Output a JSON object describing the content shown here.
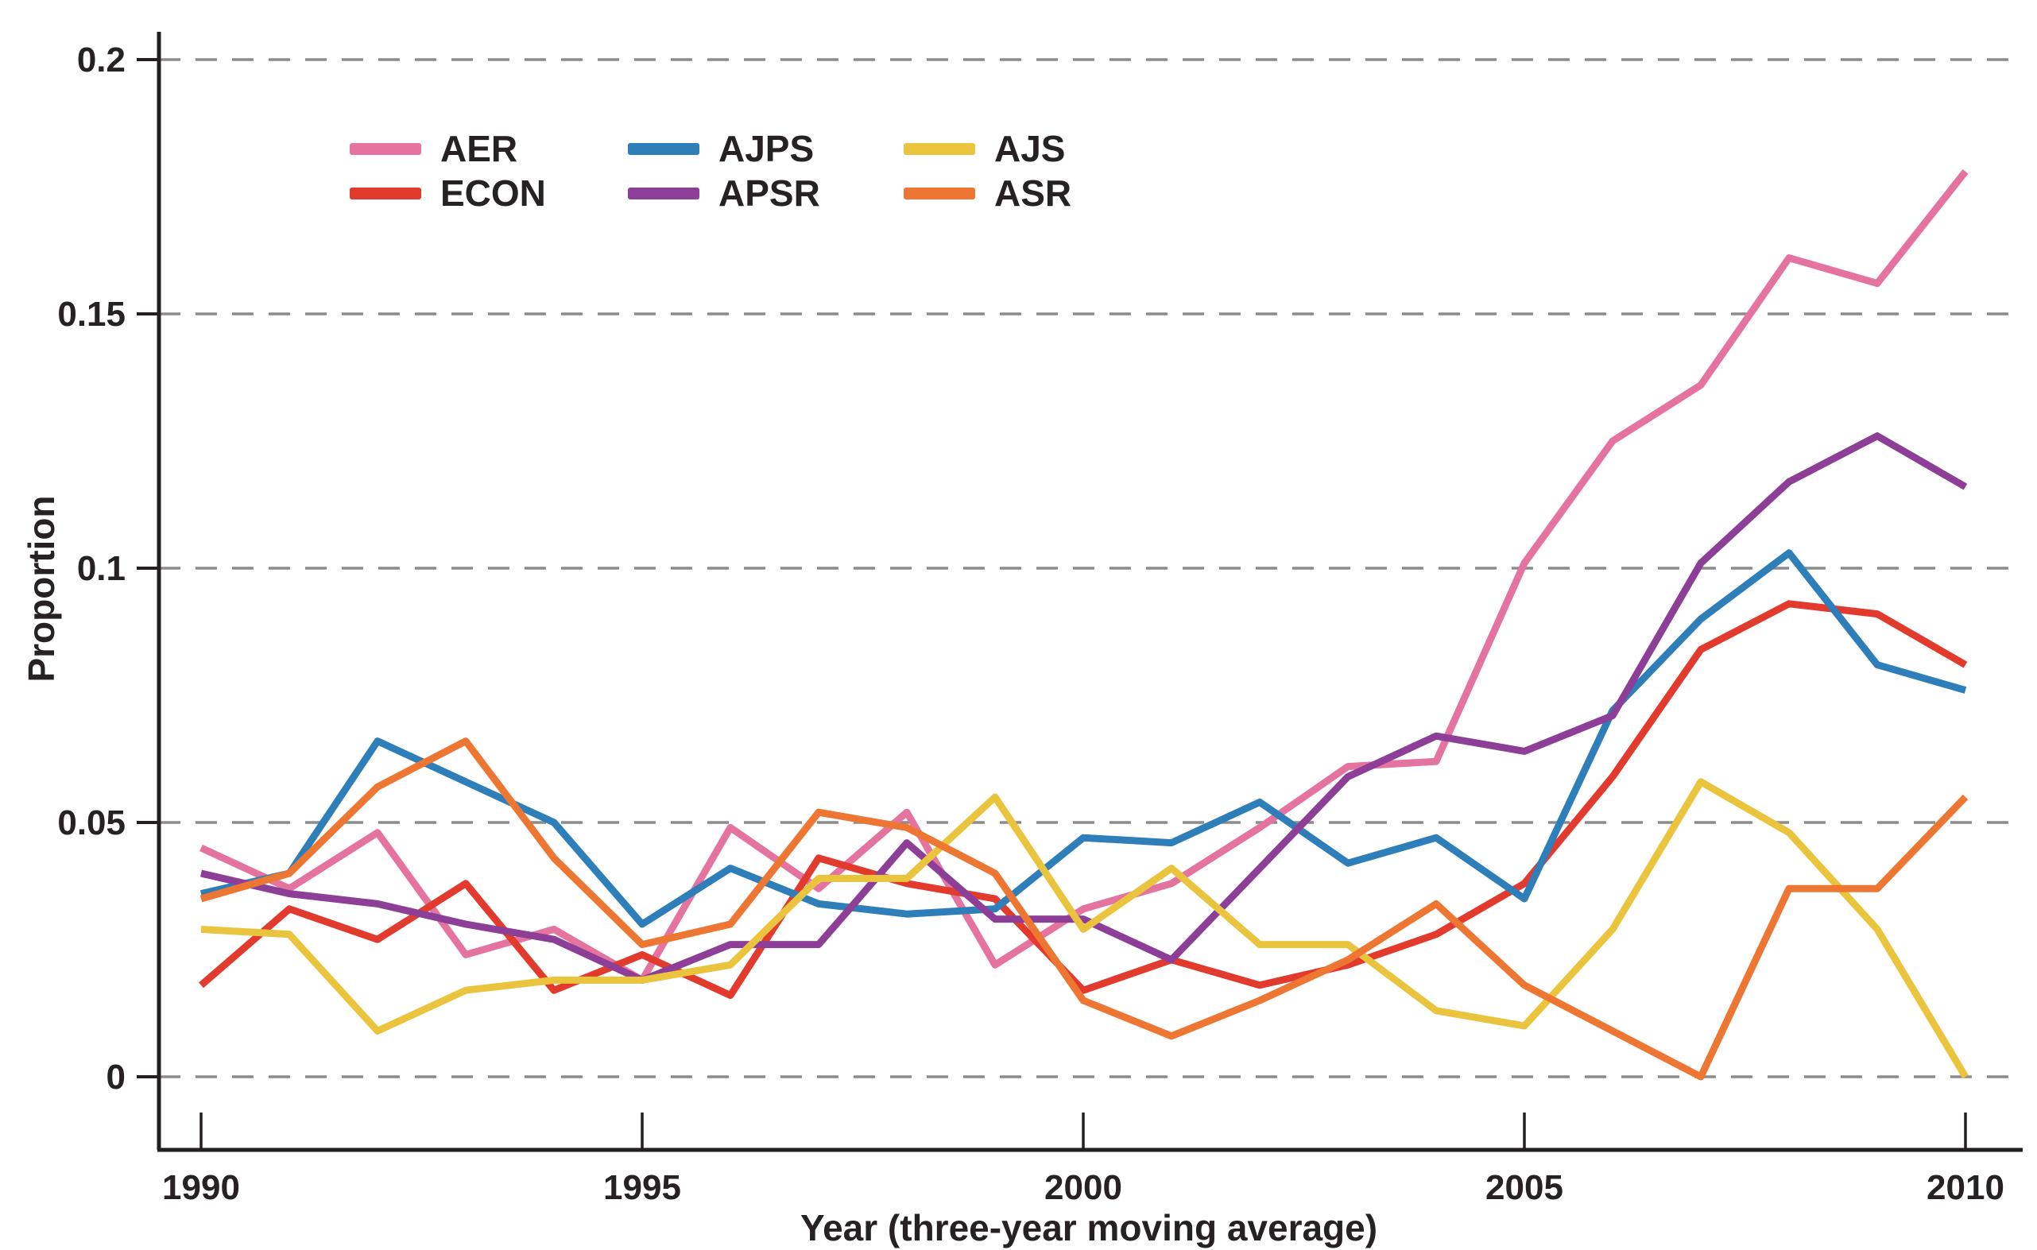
{
  "chart_data": {
    "type": "line",
    "title": "",
    "xlabel": "Year (three-year moving average)",
    "ylabel": "Proportion",
    "x": [
      1990,
      1991,
      1992,
      1993,
      1994,
      1995,
      1996,
      1997,
      1998,
      1999,
      2000,
      2001,
      2002,
      2003,
      2004,
      2005,
      2006,
      2007,
      2008,
      2009,
      2010
    ],
    "xticks": [
      1990,
      1995,
      2000,
      2005,
      2010
    ],
    "xtick_labels": [
      "1990",
      "1995",
      "2000",
      "2005",
      "2010"
    ],
    "ylim": [
      0,
      0.2
    ],
    "yticks": [
      0,
      0.05,
      0.1,
      0.15,
      0.2
    ],
    "ytick_labels": [
      "0",
      "0.05",
      "0.1",
      "0.15",
      "0.2"
    ],
    "grid": "horizontal-dashed",
    "grid_color": "#8c8c8c",
    "axis_color": "#231f20",
    "text_color": "#262223",
    "legend_position": "top-left-inside",
    "series": [
      {
        "name": "AER",
        "color": "#e5739f",
        "values": [
          0.045,
          0.037,
          0.048,
          0.024,
          0.029,
          0.019,
          0.049,
          0.037,
          0.052,
          0.022,
          0.033,
          0.038,
          0.049,
          0.061,
          0.062,
          0.101,
          0.125,
          0.136,
          0.161,
          0.156,
          0.178
        ]
      },
      {
        "name": "ECON",
        "color": "#e23b2e",
        "values": [
          0.018,
          0.033,
          0.027,
          0.038,
          0.017,
          0.024,
          0.016,
          0.043,
          0.038,
          0.035,
          0.017,
          0.023,
          0.018,
          0.022,
          0.028,
          0.038,
          0.059,
          0.084,
          0.093,
          0.091,
          0.081
        ]
      },
      {
        "name": "AJPS",
        "color": "#2e7eba",
        "values": [
          0.036,
          0.04,
          0.066,
          0.058,
          0.05,
          0.03,
          0.041,
          0.034,
          0.032,
          0.033,
          0.047,
          0.046,
          0.054,
          0.042,
          0.047,
          0.035,
          0.072,
          0.09,
          0.103,
          0.081,
          0.076
        ]
      },
      {
        "name": "APSR",
        "color": "#8d3f97",
        "values": [
          0.04,
          0.036,
          0.034,
          0.03,
          0.027,
          0.019,
          0.026,
          0.026,
          0.046,
          0.031,
          0.031,
          0.023,
          0.041,
          0.059,
          0.067,
          0.064,
          0.071,
          0.101,
          0.117,
          0.126,
          0.116
        ]
      },
      {
        "name": "AJS",
        "color": "#eac43d",
        "values": [
          0.029,
          0.028,
          0.009,
          0.017,
          0.019,
          0.019,
          0.022,
          0.039,
          0.039,
          0.055,
          0.029,
          0.041,
          0.026,
          0.026,
          0.013,
          0.01,
          0.029,
          0.058,
          0.048,
          0.029,
          0.0
        ]
      },
      {
        "name": "ASR",
        "color": "#ee7633",
        "values": [
          0.035,
          0.04,
          0.057,
          0.066,
          0.043,
          0.026,
          0.03,
          0.052,
          0.049,
          0.04,
          0.015,
          0.008,
          0.015,
          0.023,
          0.034,
          0.018,
          0.009,
          0.0,
          0.037,
          0.037,
          0.055
        ]
      }
    ],
    "legend_rows": [
      [
        "AER",
        "AJPS",
        "AJS"
      ],
      [
        "ECON",
        "APSR",
        "ASR"
      ]
    ]
  }
}
